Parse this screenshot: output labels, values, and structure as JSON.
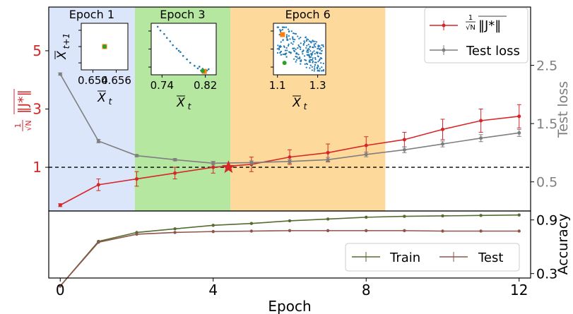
{
  "chart_data": [
    {
      "type": "line",
      "panel": "top",
      "xlim": [
        -0.3,
        12.3
      ],
      "x": [
        0,
        1,
        2,
        3,
        4,
        5,
        6,
        7,
        8,
        9,
        10,
        11,
        12
      ],
      "left_axis": {
        "label": "1/√N ‖J*‖",
        "ylim": [
          -0.5,
          6.5
        ],
        "ticks": [
          1,
          3,
          5
        ],
        "tick_labels": [
          "1",
          "3",
          "5"
        ],
        "color": "#d62728"
      },
      "right_axis": {
        "label": "Test loss",
        "ylim": [
          0.0,
          3.5
        ],
        "ticks": [
          0.5,
          1.5,
          2.5
        ],
        "tick_labels": [
          "0.5",
          "1.5",
          "2.5"
        ],
        "color": "#7f7f7f"
      },
      "series": [
        {
          "name": "1/√N ‖J*‖",
          "axis": "left",
          "color": "#d62728",
          "values": [
            -0.3,
            0.4,
            0.6,
            0.8,
            1.0,
            1.1,
            1.35,
            1.5,
            1.75,
            1.95,
            2.3,
            2.6,
            2.75
          ],
          "errors": [
            0.05,
            0.2,
            0.25,
            0.2,
            0.2,
            0.25,
            0.25,
            0.3,
            0.3,
            0.25,
            0.35,
            0.4,
            0.4
          ]
        },
        {
          "name": "Test loss",
          "axis": "right",
          "color": "#7f7f7f",
          "values": [
            2.35,
            1.2,
            0.95,
            0.88,
            0.82,
            0.83,
            0.85,
            0.88,
            0.97,
            1.05,
            1.15,
            1.25,
            1.34
          ],
          "errors": [
            0.02,
            0.03,
            0.02,
            0.02,
            0.03,
            0.03,
            0.03,
            0.04,
            0.04,
            0.05,
            0.05,
            0.06,
            0.06
          ]
        }
      ],
      "reference_line": {
        "y": 1,
        "axis": "left",
        "style": "dashed",
        "color": "#000000"
      },
      "star_marker": {
        "x": 4.4,
        "y": 1,
        "color": "#d62728"
      },
      "regions": [
        {
          "label": "Epoch 1",
          "x_start": -0.3,
          "x_end": 1.95,
          "color": "#dce6fb"
        },
        {
          "label": "Epoch 3",
          "x_start": 1.95,
          "x_end": 4.45,
          "color": "#b5e7a0"
        },
        {
          "label": "Epoch 6",
          "x_start": 4.45,
          "x_end": 8.5,
          "color": "#fdd99b"
        }
      ],
      "legend_placement": "top-right"
    },
    {
      "type": "line",
      "panel": "bottom",
      "xlim": [
        -0.3,
        12.3
      ],
      "x": [
        0,
        1,
        2,
        3,
        4,
        5,
        6,
        7,
        8,
        9,
        10,
        11,
        12
      ],
      "xlabel": "Epoch",
      "xticks": [
        0,
        4,
        8,
        12
      ],
      "xtick_labels": [
        "0",
        "4",
        "8",
        "12"
      ],
      "right_axis": {
        "label": "Accuracy",
        "ylim": [
          0.25,
          1.0
        ],
        "ticks": [
          0.3,
          0.9
        ],
        "tick_labels": [
          "0.3",
          "0.9"
        ]
      },
      "series": [
        {
          "name": "Train",
          "color": "#556b2f",
          "values": [
            0.16,
            0.66,
            0.76,
            0.8,
            0.84,
            0.86,
            0.89,
            0.91,
            0.93,
            0.94,
            0.945,
            0.95,
            0.955
          ]
        },
        {
          "name": "Test",
          "color": "#8c564b",
          "values": [
            0.16,
            0.65,
            0.74,
            0.76,
            0.77,
            0.775,
            0.78,
            0.78,
            0.78,
            0.78,
            0.775,
            0.775,
            0.775
          ]
        }
      ],
      "legend_placement": "lower-right"
    },
    {
      "type": "scatter",
      "panel": "inset",
      "title": "Epoch 1",
      "xlabel": "X̄t",
      "ylabel": "X̄t+1",
      "xlim": [
        0.653,
        0.657
      ],
      "ylim": [
        0.653,
        0.657
      ],
      "xticks": [
        0.654,
        0.656
      ],
      "xtick_labels": [
        "0.654",
        "0.656"
      ],
      "blue_points": [
        [
          0.655,
          0.655
        ]
      ],
      "orange_marker": [
        0.655,
        0.655
      ],
      "green_marker": [
        0.655,
        0.655
      ]
    },
    {
      "type": "scatter",
      "panel": "inset",
      "title": "Epoch 3",
      "xlabel": "X̄t",
      "xlim": [
        0.72,
        0.84
      ],
      "ylim": [
        0.72,
        0.84
      ],
      "xticks": [
        0.74,
        0.82
      ],
      "xtick_labels": [
        "0.74",
        "0.82"
      ],
      "blue_points": [
        [
          0.732,
          0.832
        ],
        [
          0.737,
          0.823
        ],
        [
          0.744,
          0.815
        ],
        [
          0.749,
          0.806
        ],
        [
          0.755,
          0.798
        ],
        [
          0.76,
          0.789
        ],
        [
          0.767,
          0.781
        ],
        [
          0.774,
          0.773
        ],
        [
          0.779,
          0.764
        ],
        [
          0.786,
          0.756
        ],
        [
          0.792,
          0.748
        ],
        [
          0.8,
          0.741
        ],
        [
          0.806,
          0.735
        ],
        [
          0.812,
          0.73
        ],
        [
          0.818,
          0.727
        ],
        [
          0.823,
          0.73
        ],
        [
          0.815,
          0.734
        ],
        [
          0.809,
          0.739
        ],
        [
          0.826,
          0.733
        ],
        [
          0.771,
          0.776
        ]
      ],
      "orange_marker": [
        0.818,
        0.728
      ],
      "green_marker": [
        0.815,
        0.729
      ]
    },
    {
      "type": "scatter",
      "panel": "inset",
      "title": "Epoch 6",
      "xlabel": "X̄t",
      "xlim": [
        1.08,
        1.34
      ],
      "ylim": [
        1.08,
        1.34
      ],
      "xticks": [
        1.1,
        1.3
      ],
      "xtick_labels": [
        "1.1",
        "1.3"
      ],
      "cloud": {
        "count": 240,
        "x_range": [
          1.1,
          1.33
        ],
        "y_range": [
          1.1,
          1.32
        ]
      },
      "orange_marker": [
        1.125,
        1.283
      ],
      "green_marker": [
        1.135,
        1.14
      ]
    }
  ]
}
